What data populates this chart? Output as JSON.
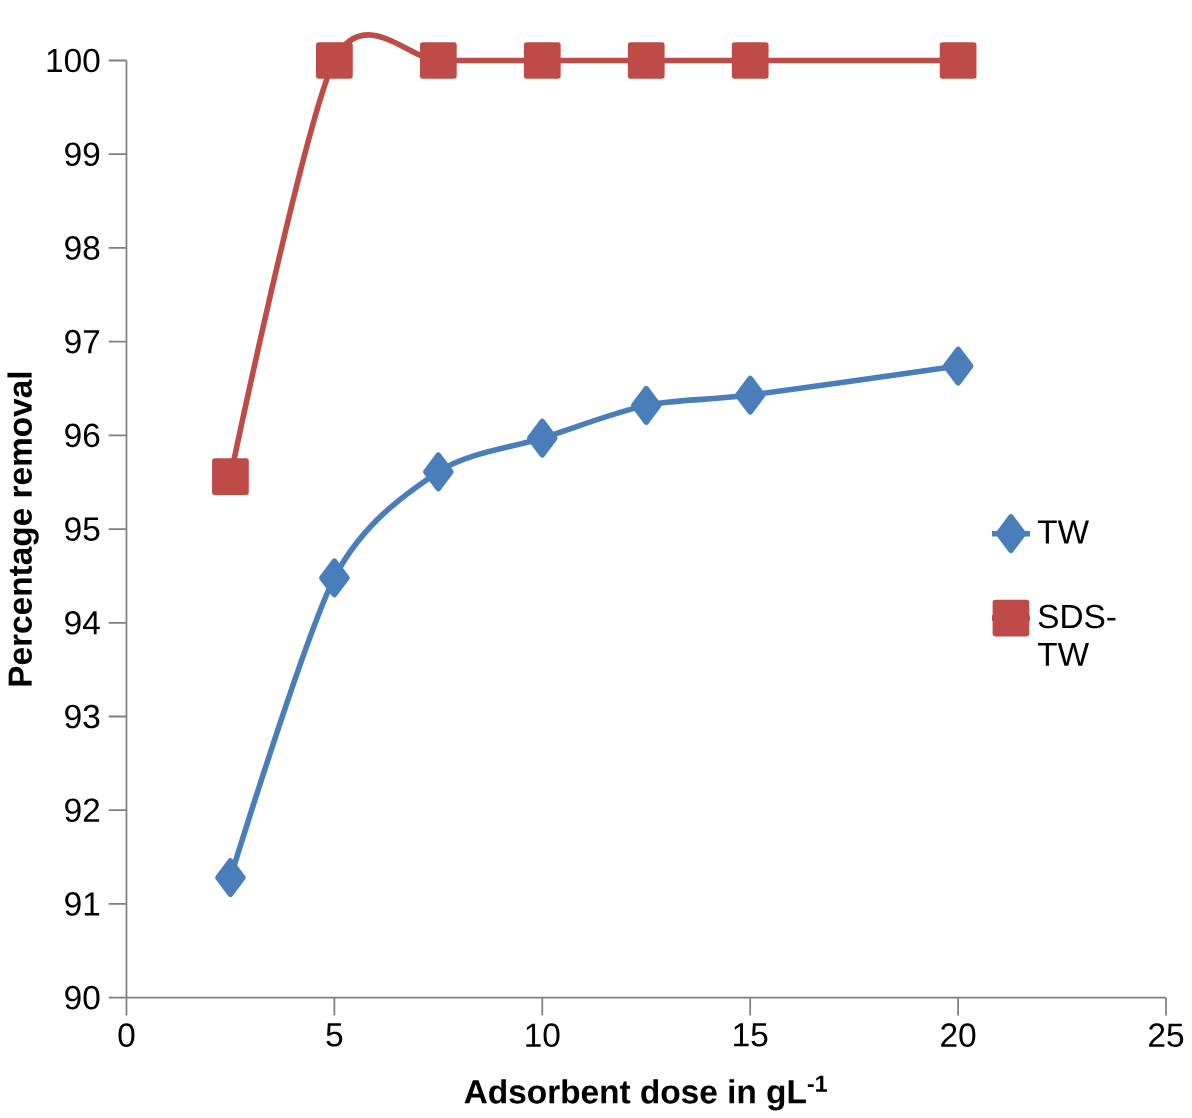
{
  "chart_data": {
    "type": "line",
    "xlabel": "Adsorbent dose in gL$^{-1}$",
    "ylabel": "Percentage removal",
    "x": [
      2.5,
      5,
      7.5,
      10,
      12.5,
      15,
      20
    ],
    "series": [
      {
        "name": "TW",
        "color": "#4a7ebb",
        "marker": "diamond",
        "values": [
          91.28,
          94.48,
          95.61,
          95.97,
          96.32,
          96.43,
          96.74
        ]
      },
      {
        "name": "SDS-TW",
        "color": "#be4b48",
        "marker": "square",
        "values": [
          95.56,
          100,
          100,
          100,
          100,
          100,
          100
        ]
      }
    ],
    "xlim": [
      0,
      25
    ],
    "xticks": [
      0,
      5,
      10,
      15,
      20,
      25
    ],
    "ylim": [
      90,
      100
    ],
    "yticks": [
      90,
      91,
      92,
      93,
      94,
      95,
      96,
      97,
      98,
      99,
      100
    ],
    "grid": false,
    "legend": "right",
    "line_style": "solid"
  }
}
